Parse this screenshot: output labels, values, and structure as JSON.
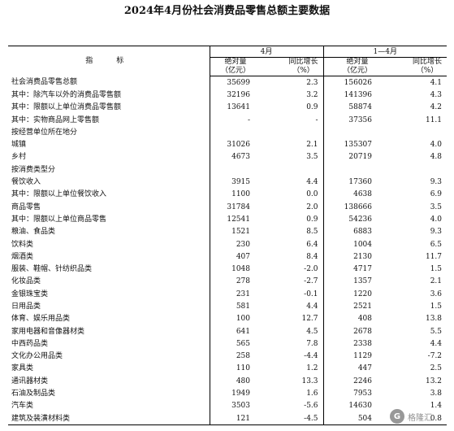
{
  "title": "2024年4月份社会消费品零售总额主要数据",
  "header": {
    "indicator": "指　标",
    "group_april": "4月",
    "group_jan_apr": "1—4月",
    "absolute": "绝对量",
    "absolute_unit": "（亿元）",
    "yoy": "同比增长",
    "yoy_unit": "（%）"
  },
  "rows": [
    {
      "name": "社会消费品零售总额",
      "indent": 0,
      "apr_abs": "35699",
      "apr_yoy": "2.3",
      "ytd_abs": "156026",
      "ytd_yoy": "4.1"
    },
    {
      "name": "其中：除汽车以外的消费品零售额",
      "indent": 1,
      "apr_abs": "32196",
      "apr_yoy": "3.2",
      "ytd_abs": "141396",
      "ytd_yoy": "4.3"
    },
    {
      "name": "其中：限额以上单位消费品零售额",
      "indent": 1,
      "apr_abs": "13641",
      "apr_yoy": "0.9",
      "ytd_abs": "58874",
      "ytd_yoy": "4.2"
    },
    {
      "name": "其中：实物商品网上零售额",
      "indent": 1,
      "apr_abs": "-",
      "apr_yoy": "-",
      "ytd_abs": "37356",
      "ytd_yoy": "11.1"
    },
    {
      "name": "按经营单位所在地分",
      "indent": 0,
      "apr_abs": "",
      "apr_yoy": "",
      "ytd_abs": "",
      "ytd_yoy": ""
    },
    {
      "name": "城镇",
      "indent": 2,
      "apr_abs": "31026",
      "apr_yoy": "2.1",
      "ytd_abs": "135307",
      "ytd_yoy": "4.0"
    },
    {
      "name": "乡村",
      "indent": 2,
      "apr_abs": "4673",
      "apr_yoy": "3.5",
      "ytd_abs": "20719",
      "ytd_yoy": "4.8"
    },
    {
      "name": "按消费类型分",
      "indent": 0,
      "apr_abs": "",
      "apr_yoy": "",
      "ytd_abs": "",
      "ytd_yoy": ""
    },
    {
      "name": "餐饮收入",
      "indent": 1,
      "apr_abs": "3915",
      "apr_yoy": "4.4",
      "ytd_abs": "17360",
      "ytd_yoy": "9.3"
    },
    {
      "name": "其中：限额以上单位餐饮收入",
      "indent": 2,
      "apr_abs": "1100",
      "apr_yoy": "0.0",
      "ytd_abs": "4638",
      "ytd_yoy": "6.9"
    },
    {
      "name": "商品零售",
      "indent": 1,
      "apr_abs": "31784",
      "apr_yoy": "2.0",
      "ytd_abs": "138666",
      "ytd_yoy": "3.5"
    },
    {
      "name": "其中：限额以上单位商品零售",
      "indent": 2,
      "apr_abs": "12541",
      "apr_yoy": "0.9",
      "ytd_abs": "54236",
      "ytd_yoy": "4.0"
    },
    {
      "name": "粮油、食品类",
      "indent": 4,
      "apr_abs": "1521",
      "apr_yoy": "8.5",
      "ytd_abs": "6883",
      "ytd_yoy": "9.3"
    },
    {
      "name": "饮料类",
      "indent": 3,
      "apr_abs": "230",
      "apr_yoy": "6.4",
      "ytd_abs": "1004",
      "ytd_yoy": "6.5"
    },
    {
      "name": "烟酒类",
      "indent": 3,
      "apr_abs": "407",
      "apr_yoy": "8.4",
      "ytd_abs": "2130",
      "ytd_yoy": "11.7"
    },
    {
      "name": "服装、鞋帽、针纺织品类",
      "indent": 3,
      "apr_abs": "1048",
      "apr_yoy": "-2.0",
      "ytd_abs": "4717",
      "ytd_yoy": "1.5"
    },
    {
      "name": "化妆品类",
      "indent": 3,
      "apr_abs": "278",
      "apr_yoy": "-2.7",
      "ytd_abs": "1357",
      "ytd_yoy": "2.1"
    },
    {
      "name": "金银珠宝类",
      "indent": 3,
      "apr_abs": "231",
      "apr_yoy": "-0.1",
      "ytd_abs": "1220",
      "ytd_yoy": "3.6"
    },
    {
      "name": "日用品类",
      "indent": 3,
      "apr_abs": "581",
      "apr_yoy": "4.4",
      "ytd_abs": "2521",
      "ytd_yoy": "1.5"
    },
    {
      "name": "体育、娱乐用品类",
      "indent": 3,
      "apr_abs": "100",
      "apr_yoy": "12.7",
      "ytd_abs": "408",
      "ytd_yoy": "13.8"
    },
    {
      "name": "家用电器和音像器材类",
      "indent": 3,
      "apr_abs": "641",
      "apr_yoy": "4.5",
      "ytd_abs": "2678",
      "ytd_yoy": "5.5"
    },
    {
      "name": "中西药品类",
      "indent": 3,
      "apr_abs": "565",
      "apr_yoy": "7.8",
      "ytd_abs": "2338",
      "ytd_yoy": "4.4"
    },
    {
      "name": "文化办公用品类",
      "indent": 3,
      "apr_abs": "258",
      "apr_yoy": "-4.4",
      "ytd_abs": "1129",
      "ytd_yoy": "-7.2"
    },
    {
      "name": "家具类",
      "indent": 3,
      "apr_abs": "110",
      "apr_yoy": "1.2",
      "ytd_abs": "447",
      "ytd_yoy": "2.5"
    },
    {
      "name": "通讯器材类",
      "indent": 3,
      "apr_abs": "480",
      "apr_yoy": "13.3",
      "ytd_abs": "2246",
      "ytd_yoy": "13.2"
    },
    {
      "name": "石油及制品类",
      "indent": 3,
      "apr_abs": "1949",
      "apr_yoy": "1.6",
      "ytd_abs": "7953",
      "ytd_yoy": "3.8"
    },
    {
      "name": "汽车类",
      "indent": 3,
      "apr_abs": "3503",
      "apr_yoy": "-5.6",
      "ytd_abs": "14630",
      "ytd_yoy": "1.4"
    },
    {
      "name": "建筑及装潢材料类",
      "indent": 3,
      "apr_abs": "121",
      "apr_yoy": "-4.5",
      "ytd_abs": "504",
      "ytd_yoy": "0.8"
    }
  ],
  "watermark": {
    "glyph": "G",
    "text": "格隆汇"
  }
}
